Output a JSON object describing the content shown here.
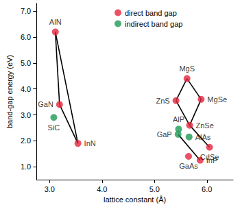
{
  "chart_data": {
    "type": "scatter",
    "x_label": "lattice constant (Å)",
    "y_label": "band-gap energy (eV)",
    "xlim": [
      2.75,
      6.5
    ],
    "xticks": [
      {
        "value": 3,
        "label": "3.0"
      },
      {
        "value": 4,
        "label": "4.0"
      },
      {
        "value": 5,
        "label": "5.0"
      },
      {
        "value": 6,
        "label": "6.0"
      }
    ],
    "ylim": [
      0.5,
      7.3
    ],
    "yticks": [
      {
        "value": 1,
        "label": "1.0"
      },
      {
        "value": 2,
        "label": "2.0"
      },
      {
        "value": 3,
        "label": "3.0"
      },
      {
        "value": 4,
        "label": "4.0"
      },
      {
        "value": 5,
        "label": "5.0"
      },
      {
        "value": 6,
        "label": "6.0"
      },
      {
        "value": 7,
        "label": "7.0"
      }
    ],
    "grid": false,
    "legend": "top",
    "series": [
      {
        "name": "direct band gap",
        "color": "#e3253f",
        "marker": "circle",
        "labels": [
          "AlN",
          "GaN",
          "InN",
          "MgS",
          "ZnS",
          "MgSe",
          "ZnSe",
          "GaAs",
          "InP",
          "CdSe"
        ],
        "x": [
          3.11,
          3.19,
          3.54,
          5.62,
          5.41,
          5.89,
          5.67,
          5.65,
          5.87,
          6.05
        ],
        "values": [
          6.2,
          3.4,
          1.9,
          4.4,
          3.55,
          3.6,
          2.6,
          1.4,
          1.25,
          1.75
        ]
      },
      {
        "name": "indirect band gap",
        "color": "#1f9a55",
        "marker": "circle",
        "labels": [
          "SiC",
          "AlP",
          "GaP",
          "AlAs"
        ],
        "x": [
          3.08,
          5.46,
          5.45,
          5.66
        ],
        "values": [
          2.9,
          2.45,
          2.25,
          2.15
        ]
      }
    ],
    "lines": [
      [
        "AlN",
        "GaN"
      ],
      [
        "GaN",
        "InN"
      ],
      [
        "AlN",
        "InN"
      ],
      [
        "MgS",
        "ZnS"
      ],
      [
        "ZnS",
        "ZnSe"
      ],
      [
        "ZnSe",
        "MgSe"
      ],
      [
        "MgSe",
        "MgS"
      ],
      [
        "ZnSe",
        "CdSe"
      ],
      [
        "GaP",
        "InP"
      ]
    ]
  }
}
